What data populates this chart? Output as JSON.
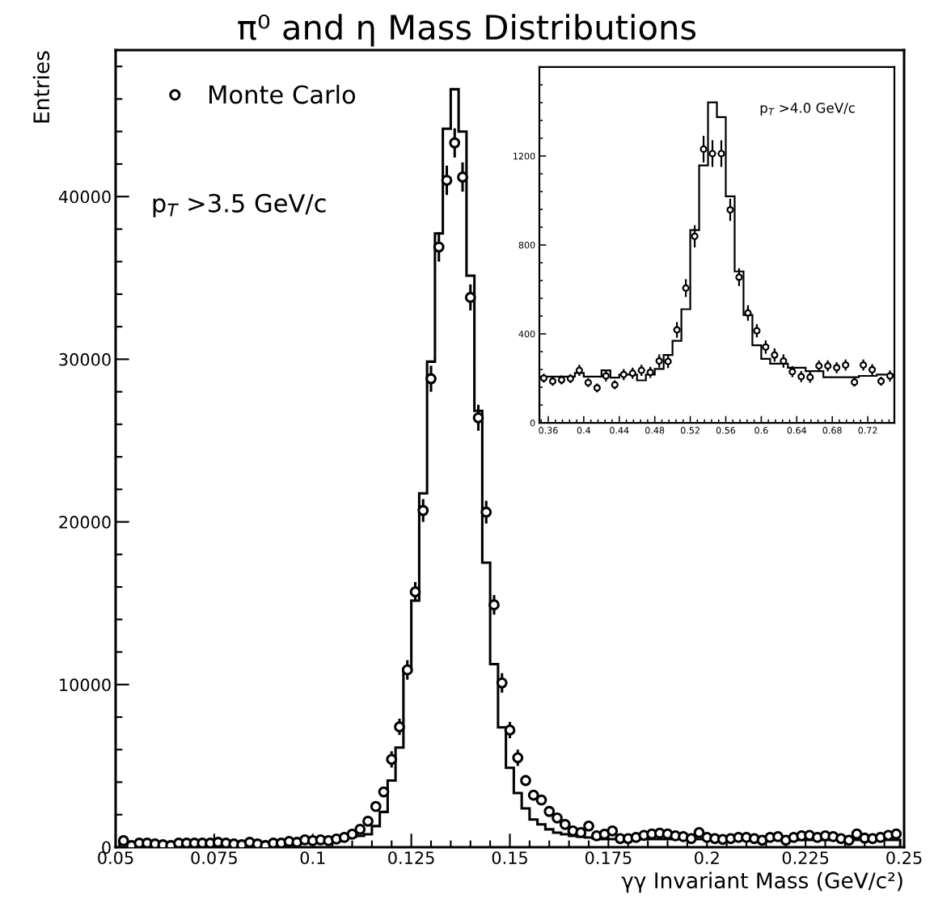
{
  "chart_data": [
    {
      "type": "histogram",
      "title": "π⁰ and η Mass Distributions",
      "xlabel": "γγ Invariant Mass (GeV/c²)",
      "ylabel": "Entries",
      "color": "#000000",
      "annotations": [
        "p$_{T}$ >3.5 GeV/c"
      ],
      "xlim": [
        0.05,
        0.25
      ],
      "ylim": [
        0,
        49000
      ],
      "xticks": [
        0.05,
        0.075,
        0.1,
        0.125,
        0.15,
        0.175,
        0.2,
        0.225,
        0.25
      ],
      "yticks": [
        0,
        10000,
        20000,
        30000,
        40000
      ],
      "grid": false,
      "legend": "top left",
      "marker": "circle",
      "bins": [
        0.051,
        0.053,
        0.055,
        0.057,
        0.059,
        0.061,
        0.063,
        0.065,
        0.067,
        0.069,
        0.071,
        0.073,
        0.075,
        0.077,
        0.079,
        0.081,
        0.083,
        0.085,
        0.087,
        0.089,
        0.091,
        0.093,
        0.095,
        0.097,
        0.099,
        0.101,
        0.103,
        0.105,
        0.107,
        0.109,
        0.111,
        0.113,
        0.115,
        0.117,
        0.119,
        0.121,
        0.123,
        0.125,
        0.127,
        0.129,
        0.131,
        0.133,
        0.135,
        0.137,
        0.139,
        0.141,
        0.143,
        0.145,
        0.147,
        0.149,
        0.151,
        0.153,
        0.155,
        0.157,
        0.159,
        0.161,
        0.163,
        0.165,
        0.167,
        0.169,
        0.171,
        0.173,
        0.175,
        0.177,
        0.179,
        0.181,
        0.183,
        0.185,
        0.187,
        0.189,
        0.191,
        0.193,
        0.195,
        0.197,
        0.199,
        0.201,
        0.203,
        0.205,
        0.207,
        0.209,
        0.211,
        0.213,
        0.215,
        0.217,
        0.219,
        0.221,
        0.223,
        0.225,
        0.227,
        0.229,
        0.231,
        0.233,
        0.235,
        0.237,
        0.239,
        0.241,
        0.243,
        0.245,
        0.247,
        0.249
      ],
      "values": [
        250,
        250,
        250,
        200,
        200,
        200,
        250,
        250,
        250,
        250,
        250,
        250,
        250,
        250,
        200,
        200,
        250,
        250,
        250,
        250,
        300,
        300,
        300,
        350,
        400,
        400,
        400,
        450,
        550,
        650,
        700,
        800,
        1300,
        2170,
        4100,
        6130,
        10800,
        15160,
        21760,
        29850,
        37730,
        44170,
        46600,
        44000,
        35140,
        26830,
        17490,
        11260,
        7370,
        4880,
        3330,
        2390,
        1700,
        1400,
        1100,
        900,
        800,
        700,
        650,
        600,
        550,
        500,
        500,
        500,
        500,
        500,
        500,
        500,
        500,
        500,
        500,
        500,
        500,
        500,
        500,
        450,
        450,
        450,
        450,
        450,
        450,
        450,
        450,
        450,
        450,
        450,
        450,
        450,
        450,
        450,
        450,
        450,
        450,
        450,
        450,
        450,
        450,
        450,
        450
      ],
      "series": [
        {
          "type": "scatter",
          "name": "Monte Carlo",
          "color": "#000000",
          "x": [
            0.052,
            0.054,
            0.056,
            0.058,
            0.06,
            0.062,
            0.064,
            0.066,
            0.068,
            0.07,
            0.072,
            0.074,
            0.076,
            0.078,
            0.08,
            0.082,
            0.084,
            0.086,
            0.088,
            0.09,
            0.092,
            0.094,
            0.096,
            0.098,
            0.1,
            0.102,
            0.104,
            0.106,
            0.108,
            0.11,
            0.112,
            0.114,
            0.116,
            0.118,
            0.12,
            0.122,
            0.124,
            0.126,
            0.128,
            0.13,
            0.132,
            0.134,
            0.136,
            0.138,
            0.14,
            0.142,
            0.144,
            0.146,
            0.148,
            0.15,
            0.152,
            0.154,
            0.156,
            0.158,
            0.16,
            0.162,
            0.164,
            0.166,
            0.168,
            0.17,
            0.172,
            0.174,
            0.176,
            0.178,
            0.18,
            0.182,
            0.184,
            0.186,
            0.188,
            0.19,
            0.192,
            0.194,
            0.196,
            0.198,
            0.2,
            0.202,
            0.204,
            0.206,
            0.208,
            0.21,
            0.212,
            0.214,
            0.216,
            0.218,
            0.22,
            0.222,
            0.224,
            0.226,
            0.228,
            0.23,
            0.232,
            0.234,
            0.236,
            0.238,
            0.24,
            0.242,
            0.244,
            0.246,
            0.248
          ],
          "values": [
            400,
            100,
            250,
            250,
            200,
            150,
            100,
            250,
            250,
            250,
            250,
            250,
            300,
            250,
            200,
            150,
            300,
            200,
            100,
            250,
            250,
            350,
            300,
            450,
            400,
            450,
            400,
            500,
            600,
            800,
            1100,
            1600,
            2500,
            3400,
            5400,
            7400,
            10900,
            15700,
            20700,
            28800,
            36900,
            41000,
            43300,
            41200,
            33800,
            26400,
            20600,
            14900,
            10100,
            7200,
            5500,
            4100,
            3200,
            2900,
            2200,
            1800,
            1400,
            1000,
            900,
            1300,
            700,
            800,
            1000,
            530,
            530,
            600,
            730,
            810,
            860,
            810,
            700,
            650,
            530,
            900,
            600,
            530,
            480,
            530,
            600,
            600,
            530,
            430,
            600,
            650,
            430,
            600,
            700,
            730,
            600,
            700,
            650,
            530,
            430,
            810,
            560,
            530,
            600,
            730,
            810
          ],
          "errors": [
            null,
            null,
            null,
            null,
            null,
            null,
            null,
            null,
            null,
            null,
            null,
            null,
            null,
            null,
            null,
            null,
            null,
            null,
            null,
            null,
            null,
            null,
            null,
            null,
            null,
            null,
            null,
            null,
            null,
            null,
            null,
            null,
            null,
            null,
            500,
            500,
            600,
            600,
            700,
            800,
            900,
            900,
            900,
            900,
            800,
            800,
            700,
            600,
            600,
            500,
            500,
            null,
            null,
            null,
            null,
            null,
            null,
            null,
            null,
            null,
            null,
            null,
            null,
            null,
            null,
            null,
            null,
            null,
            null,
            null,
            null,
            null,
            null,
            null,
            null,
            null,
            null,
            null,
            null,
            null,
            null,
            null,
            null,
            null,
            null,
            null,
            null,
            null,
            null,
            null,
            null,
            null,
            null,
            null,
            null,
            null,
            null,
            null,
            null
          ]
        }
      ]
    },
    {
      "type": "histogram",
      "color": "#000000",
      "annotations": [
        "p$_{T}$ >4.0 GeV/c"
      ],
      "xlim": [
        0.35,
        0.75
      ],
      "ylim": [
        0,
        1600
      ],
      "xticks": [
        0.36,
        0.4,
        0.44,
        0.48,
        0.52,
        0.56,
        0.6,
        0.64,
        0.68,
        0.72
      ],
      "yticks": [
        0,
        400,
        800,
        1200
      ],
      "grid": false,
      "marker": "circle",
      "bins": [
        0.35,
        0.36,
        0.37,
        0.38,
        0.39,
        0.4,
        0.41,
        0.42,
        0.43,
        0.44,
        0.45,
        0.46,
        0.47,
        0.48,
        0.49,
        0.5,
        0.51,
        0.52,
        0.53,
        0.54,
        0.55,
        0.56,
        0.57,
        0.58,
        0.59,
        0.6,
        0.61,
        0.62,
        0.63,
        0.64,
        0.65,
        0.66,
        0.67,
        0.68,
        0.69,
        0.7,
        0.71,
        0.72,
        0.73,
        0.74,
        0.75
      ],
      "values": [
        208,
        208,
        208,
        208,
        224,
        208,
        208,
        236,
        203,
        217,
        217,
        191,
        217,
        242,
        305,
        369,
        511,
        867,
        1158,
        1441,
        1375,
        1019,
        681,
        485,
        349,
        288,
        266,
        266,
        248,
        248,
        232,
        232,
        205,
        205,
        205,
        205,
        211,
        211,
        217,
        217
      ],
      "series": [
        {
          "type": "scatter",
          "color": "#000000",
          "x": [
            0.355,
            0.365,
            0.375,
            0.385,
            0.395,
            0.405,
            0.415,
            0.425,
            0.435,
            0.445,
            0.455,
            0.465,
            0.475,
            0.485,
            0.495,
            0.505,
            0.515,
            0.525,
            0.535,
            0.545,
            0.555,
            0.565,
            0.575,
            0.585,
            0.595,
            0.605,
            0.615,
            0.625,
            0.635,
            0.645,
            0.655,
            0.665,
            0.675,
            0.685,
            0.695,
            0.705,
            0.715,
            0.725,
            0.735,
            0.745
          ],
          "values": [
            201,
            187,
            193,
            199,
            236,
            181,
            157,
            211,
            171,
            217,
            223,
            236,
            227,
            278,
            276,
            418,
            606,
            839,
            1231,
            1211,
            1211,
            958,
            655,
            494,
            414,
            341,
            305,
            278,
            230,
            208,
            205,
            256,
            256,
            248,
            260,
            183,
            260,
            239,
            187,
            211
          ],
          "errors": [
            20,
            20,
            20,
            20,
            25,
            20,
            20,
            25,
            20,
            25,
            25,
            25,
            25,
            30,
            30,
            35,
            40,
            50,
            60,
            60,
            60,
            50,
            40,
            35,
            30,
            30,
            30,
            30,
            25,
            25,
            25,
            25,
            25,
            25,
            25,
            20,
            25,
            25,
            20,
            25
          ]
        }
      ]
    }
  ]
}
